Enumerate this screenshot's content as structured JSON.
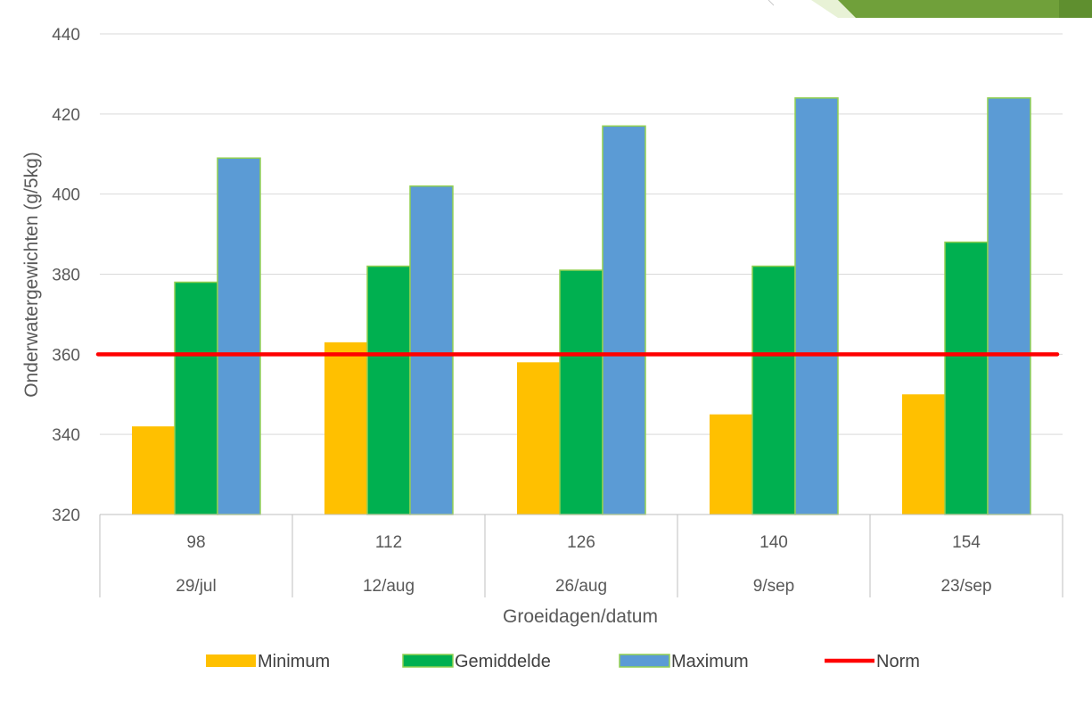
{
  "chart_data": {
    "type": "bar",
    "title": "",
    "xlabel": "Groeidagen/datum",
    "ylabel": "Onderwatergewichten (g/5kg)",
    "ylim": [
      320,
      440
    ],
    "yticks": [
      320,
      340,
      360,
      380,
      400,
      420,
      440
    ],
    "grid": true,
    "legend_position": "bottom",
    "categories": [
      {
        "day": "98",
        "date": "29/jul"
      },
      {
        "day": "112",
        "date": "12/aug"
      },
      {
        "day": "126",
        "date": "26/aug"
      },
      {
        "day": "140",
        "date": "9/sep"
      },
      {
        "day": "154",
        "date": "23/sep"
      }
    ],
    "series": [
      {
        "name": "Minimum",
        "type": "bar",
        "color": "#FFC000",
        "values": [
          342,
          363,
          358,
          345,
          350
        ]
      },
      {
        "name": "Gemiddelde",
        "type": "bar",
        "color": "#00B050",
        "values": [
          378,
          382,
          381,
          382,
          388
        ]
      },
      {
        "name": "Maximum",
        "type": "bar",
        "color": "#5B9BD5",
        "values": [
          409,
          402,
          417,
          424,
          424
        ]
      },
      {
        "name": "Norm",
        "type": "line",
        "color": "#FF0000",
        "values": [
          360,
          360,
          360,
          360,
          360
        ]
      }
    ],
    "bar_edge_color": "#92D050"
  }
}
